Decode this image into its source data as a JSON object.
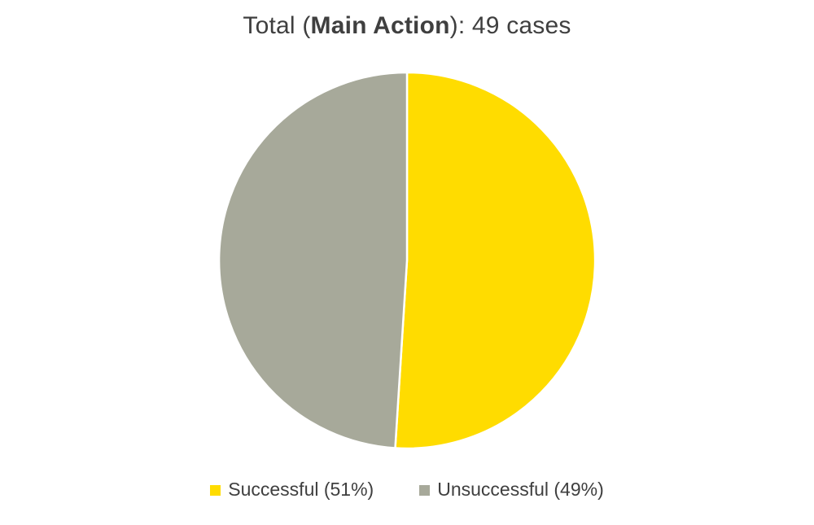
{
  "title": {
    "prefix": "Total (",
    "bold": "Main Action",
    "suffix": "): 49 cases"
  },
  "chart_data": {
    "type": "pie",
    "title": "Total (Main Action): 49 cases",
    "total_label": "49 cases",
    "total_cases": 49,
    "slices": [
      {
        "label": "Successful",
        "value": 51,
        "color": "#FFDC00",
        "legend_label": "Successful (51%)"
      },
      {
        "label": "Unsuccessful",
        "value": 49,
        "color": "#A7A99A",
        "legend_label": "Unsuccessful (49%)"
      }
    ],
    "start_angle_deg": -90,
    "direction": "clockwise",
    "legend_position": "bottom",
    "slice_border_color": "#FFFFFF"
  },
  "colors": {
    "background": "#FFFFFF",
    "title_text": "#3F3F3F",
    "legend_text": "#3F3F3F"
  }
}
